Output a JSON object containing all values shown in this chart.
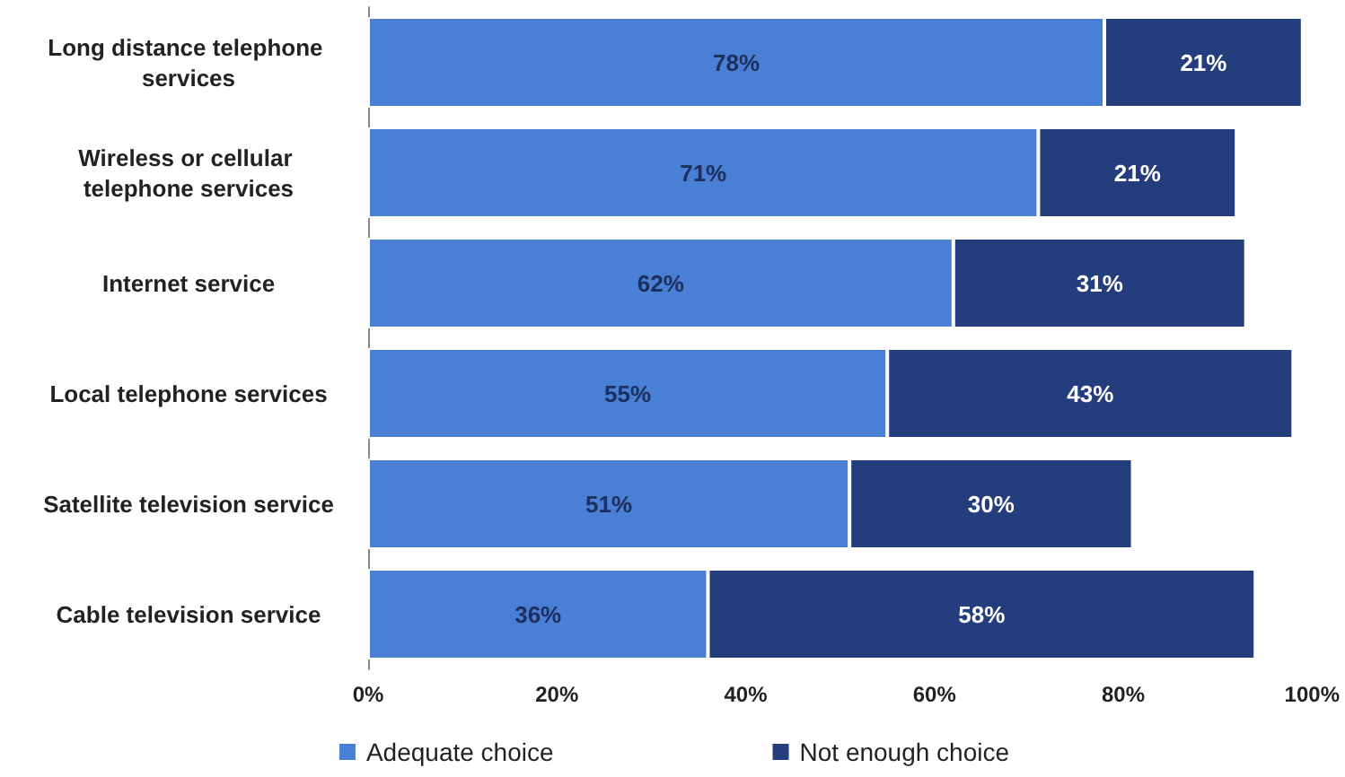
{
  "chart_data": {
    "type": "bar",
    "orientation": "horizontal",
    "stacked": true,
    "categories": [
      "Long distance telephone services",
      "Wireless or cellular telephone services",
      "Internet service",
      "Local telephone services",
      "Satellite television service",
      "Cable television service"
    ],
    "series": [
      {
        "name": "Adequate choice",
        "color": "#4a7fd6",
        "values": [
          78,
          71,
          62,
          55,
          51,
          36
        ],
        "value_labels": [
          "78%",
          "71%",
          "62%",
          "55%",
          "51%",
          "36%"
        ]
      },
      {
        "name": "Not enough choice",
        "color": "#233d7d",
        "values": [
          21,
          21,
          31,
          43,
          30,
          58
        ],
        "value_labels": [
          "21%",
          "21%",
          "31%",
          "43%",
          "30%",
          "58%"
        ]
      }
    ],
    "xlim": [
      0,
      100
    ],
    "xticks": [
      {
        "value": 0,
        "label": "0%"
      },
      {
        "value": 20,
        "label": "20%"
      },
      {
        "value": 40,
        "label": "40%"
      },
      {
        "value": 60,
        "label": "60%"
      },
      {
        "value": 80,
        "label": "80%"
      },
      {
        "value": 100,
        "label": "100%"
      }
    ],
    "grid": false,
    "legend": "bottom"
  }
}
